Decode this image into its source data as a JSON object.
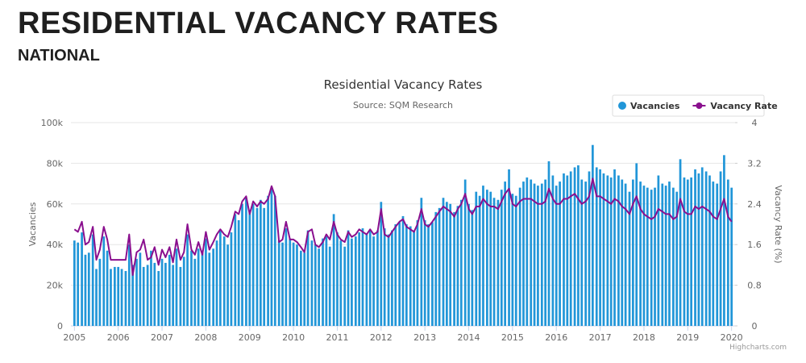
{
  "header": {
    "title": "RESIDENTIAL VACANCY RATES",
    "subtitle": "NATIONAL"
  },
  "chart_data": {
    "type": "bar",
    "title": "Residential Vacancy Rates",
    "subtitle": "Source: SQM Research",
    "y_label": "Vacancies",
    "y2_label": "Vacancy Rate (%)",
    "credit": "Highcharts.com",
    "legend": "top-right",
    "grid": true,
    "xlim": [
      2004.92,
      2020.08
    ],
    "xticks": [
      2005,
      2006,
      2007,
      2008,
      2009,
      2010,
      2011,
      2012,
      2013,
      2014,
      2015,
      2016,
      2017,
      2018,
      2019,
      2020
    ],
    "ylim": [
      0,
      100000
    ],
    "yticks": [
      0,
      {
        "value": 20000,
        "label": "20k"
      },
      {
        "value": 40000,
        "label": "40k"
      },
      {
        "value": 60000,
        "label": "60k"
      },
      {
        "value": 80000,
        "label": "80k"
      },
      {
        "value": 100000,
        "label": "100k"
      }
    ],
    "y2lim": [
      0,
      4
    ],
    "y2ticks": [
      0,
      0.8,
      1.6,
      2.4,
      3.2,
      4
    ],
    "x": [
      2005.0,
      2005.08,
      2005.17,
      2005.25,
      2005.33,
      2005.42,
      2005.5,
      2005.58,
      2005.67,
      2005.75,
      2005.83,
      2005.92,
      2006.0,
      2006.08,
      2006.17,
      2006.25,
      2006.33,
      2006.42,
      2006.5,
      2006.58,
      2006.67,
      2006.75,
      2006.83,
      2006.92,
      2007.0,
      2007.08,
      2007.17,
      2007.25,
      2007.33,
      2007.42,
      2007.5,
      2007.58,
      2007.67,
      2007.75,
      2007.83,
      2007.92,
      2008.0,
      2008.08,
      2008.17,
      2008.25,
      2008.33,
      2008.42,
      2008.5,
      2008.58,
      2008.67,
      2008.75,
      2008.83,
      2008.92,
      2009.0,
      2009.08,
      2009.17,
      2009.25,
      2009.33,
      2009.42,
      2009.5,
      2009.58,
      2009.67,
      2009.75,
      2009.83,
      2009.92,
      2010.0,
      2010.08,
      2010.17,
      2010.25,
      2010.33,
      2010.42,
      2010.5,
      2010.58,
      2010.67,
      2010.75,
      2010.83,
      2010.92,
      2011.0,
      2011.08,
      2011.17,
      2011.25,
      2011.33,
      2011.42,
      2011.5,
      2011.58,
      2011.67,
      2011.75,
      2011.83,
      2011.92,
      2012.0,
      2012.08,
      2012.17,
      2012.25,
      2012.33,
      2012.42,
      2012.5,
      2012.58,
      2012.67,
      2012.75,
      2012.83,
      2012.92,
      2013.0,
      2013.08,
      2013.17,
      2013.25,
      2013.33,
      2013.42,
      2013.5,
      2013.58,
      2013.67,
      2013.75,
      2013.83,
      2013.92,
      2014.0,
      2014.08,
      2014.17,
      2014.25,
      2014.33,
      2014.42,
      2014.5,
      2014.58,
      2014.67,
      2014.75,
      2014.83,
      2014.92,
      2015.0,
      2015.08,
      2015.17,
      2015.25,
      2015.33,
      2015.42,
      2015.5,
      2015.58,
      2015.67,
      2015.75,
      2015.83,
      2015.92,
      2016.0,
      2016.08,
      2016.17,
      2016.25,
      2016.33,
      2016.42,
      2016.5,
      2016.58,
      2016.67,
      2016.75,
      2016.83,
      2016.92,
      2017.0,
      2017.08,
      2017.17,
      2017.25,
      2017.33,
      2017.42,
      2017.5,
      2017.58,
      2017.67,
      2017.75,
      2017.83,
      2017.92,
      2018.0,
      2018.08,
      2018.17,
      2018.25,
      2018.33,
      2018.42,
      2018.5,
      2018.58,
      2018.67,
      2018.75,
      2018.83,
      2018.92,
      2019.0,
      2019.08,
      2019.17,
      2019.25,
      2019.33,
      2019.42,
      2019.5,
      2019.58,
      2019.67,
      2019.75,
      2019.83,
      2019.92,
      2020.0
    ],
    "series": [
      {
        "name": "Vacancies",
        "type": "bar",
        "color": "#2196d8",
        "values": [
          42000,
          41000,
          46000,
          35000,
          36000,
          45000,
          28000,
          33000,
          44000,
          37000,
          28000,
          29000,
          29000,
          28000,
          27000,
          40000,
          30000,
          33000,
          36000,
          29000,
          30000,
          37000,
          31000,
          27000,
          33000,
          31000,
          35000,
          30000,
          38000,
          29000,
          34000,
          45000,
          37000,
          33000,
          38000,
          37000,
          43000,
          36000,
          38000,
          42000,
          47000,
          44000,
          40000,
          46000,
          55000,
          52000,
          60000,
          63000,
          57000,
          60000,
          58000,
          62000,
          58000,
          64000,
          68000,
          64000,
          42000,
          41000,
          48000,
          43000,
          41000,
          40000,
          37000,
          36000,
          47000,
          42000,
          40000,
          38000,
          43000,
          44000,
          39000,
          55000,
          46000,
          42000,
          39000,
          47000,
          43000,
          44000,
          46000,
          48000,
          45000,
          47000,
          44000,
          47000,
          61000,
          48000,
          45000,
          47000,
          50000,
          51000,
          54000,
          50000,
          49000,
          47000,
          52000,
          63000,
          52000,
          50000,
          51000,
          56000,
          58000,
          63000,
          61000,
          60000,
          56000,
          59000,
          62000,
          72000,
          60000,
          57000,
          66000,
          64000,
          69000,
          67000,
          66000,
          63000,
          62000,
          67000,
          71000,
          77000,
          65000,
          64000,
          68000,
          71000,
          73000,
          72000,
          70000,
          69000,
          70000,
          72000,
          81000,
          74000,
          69000,
          71000,
          75000,
          74000,
          76000,
          78000,
          79000,
          72000,
          71000,
          76000,
          89000,
          78000,
          77000,
          75000,
          74000,
          73000,
          77000,
          74000,
          72000,
          70000,
          66000,
          72000,
          80000,
          71000,
          69000,
          68000,
          67000,
          68000,
          74000,
          70000,
          69000,
          71000,
          68000,
          66000,
          82000,
          73000,
          72000,
          73000,
          77000,
          75000,
          78000,
          76000,
          74000,
          71000,
          70000,
          76000,
          84000,
          72000,
          68000
        ]
      },
      {
        "name": "Vacancy Rate",
        "type": "line",
        "axis": "y2",
        "color": "#8a0f8e",
        "values": [
          1.9,
          1.85,
          2.05,
          1.6,
          1.65,
          1.95,
          1.3,
          1.5,
          1.95,
          1.7,
          1.3,
          1.3,
          1.3,
          1.3,
          1.3,
          1.8,
          1.0,
          1.45,
          1.5,
          1.7,
          1.3,
          1.35,
          1.55,
          1.2,
          1.5,
          1.35,
          1.55,
          1.25,
          1.7,
          1.3,
          1.45,
          2.0,
          1.5,
          1.4,
          1.65,
          1.4,
          1.85,
          1.5,
          1.65,
          1.8,
          1.9,
          1.8,
          1.75,
          1.95,
          2.25,
          2.2,
          2.45,
          2.55,
          2.2,
          2.45,
          2.35,
          2.45,
          2.4,
          2.5,
          2.75,
          2.55,
          1.65,
          1.7,
          2.05,
          1.7,
          1.7,
          1.65,
          1.55,
          1.45,
          1.85,
          1.9,
          1.6,
          1.55,
          1.65,
          1.8,
          1.7,
          2.05,
          1.8,
          1.7,
          1.65,
          1.85,
          1.75,
          1.8,
          1.9,
          1.85,
          1.8,
          1.9,
          1.8,
          1.85,
          2.3,
          1.8,
          1.75,
          1.85,
          1.95,
          2.05,
          2.1,
          1.95,
          1.9,
          1.85,
          2.0,
          2.3,
          2.0,
          1.95,
          2.05,
          2.15,
          2.25,
          2.35,
          2.3,
          2.25,
          2.15,
          2.3,
          2.4,
          2.6,
          2.3,
          2.2,
          2.35,
          2.35,
          2.5,
          2.4,
          2.35,
          2.35,
          2.3,
          2.45,
          2.6,
          2.7,
          2.4,
          2.35,
          2.45,
          2.5,
          2.5,
          2.5,
          2.45,
          2.4,
          2.4,
          2.45,
          2.7,
          2.5,
          2.4,
          2.4,
          2.5,
          2.5,
          2.55,
          2.6,
          2.5,
          2.4,
          2.45,
          2.55,
          2.9,
          2.55,
          2.55,
          2.5,
          2.45,
          2.4,
          2.5,
          2.45,
          2.35,
          2.3,
          2.2,
          2.4,
          2.55,
          2.3,
          2.2,
          2.15,
          2.1,
          2.15,
          2.3,
          2.25,
          2.2,
          2.2,
          2.1,
          2.15,
          2.5,
          2.25,
          2.2,
          2.2,
          2.35,
          2.3,
          2.35,
          2.3,
          2.25,
          2.15,
          2.1,
          2.3,
          2.5,
          2.15,
          2.05
        ]
      }
    ]
  }
}
